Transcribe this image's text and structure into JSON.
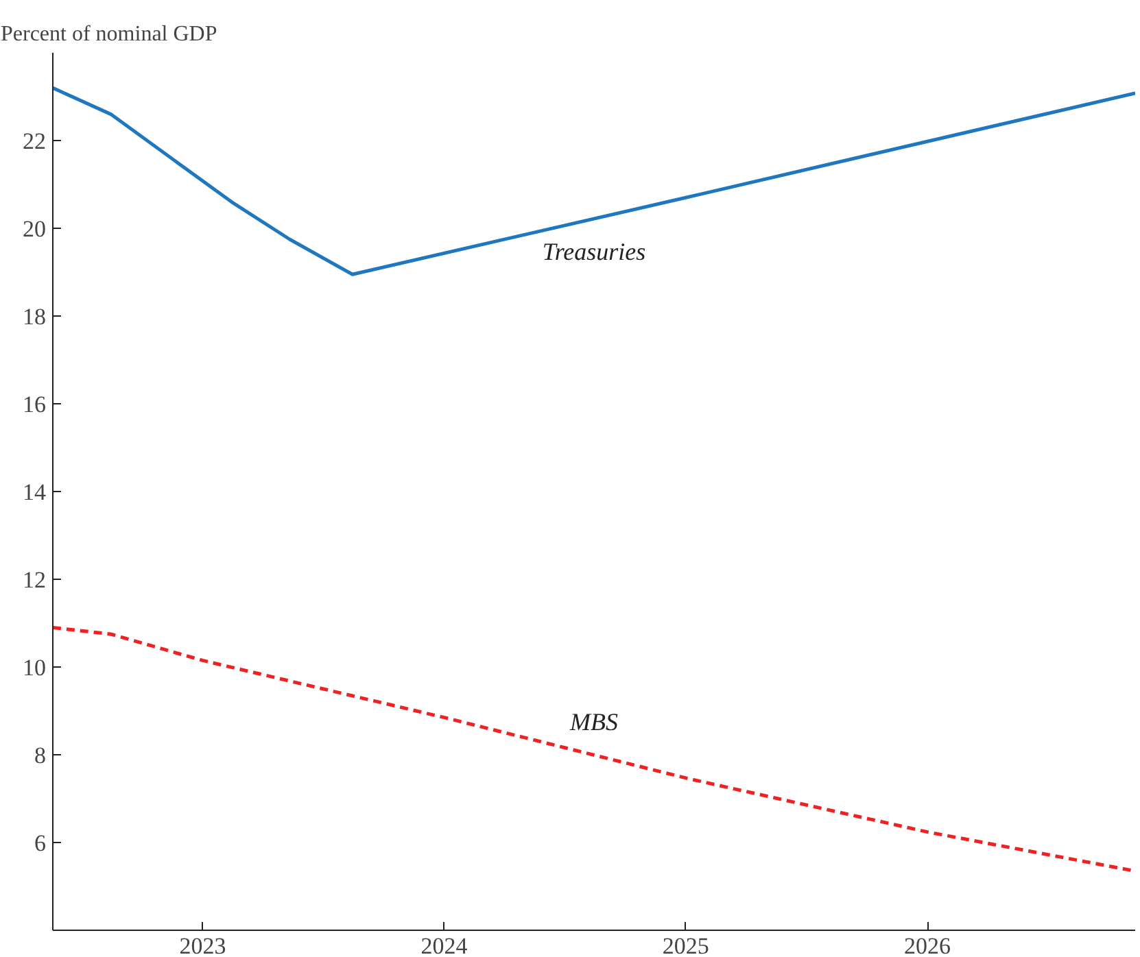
{
  "chart_data": {
    "type": "line",
    "ylabel": "Percent of nominal GDP",
    "xlim": [
      2022.38,
      2026.86
    ],
    "ylim": [
      4,
      24
    ],
    "xticks": [
      2023,
      2024,
      2025,
      2026
    ],
    "yticks": [
      6,
      8,
      10,
      12,
      14,
      16,
      18,
      20,
      22
    ],
    "grid": false,
    "legend": false,
    "series": [
      {
        "name": "Treasuries",
        "color": "#1f77c0",
        "line_style": "solid",
        "x": [
          2022.38,
          2022.62,
          2023.12,
          2023.36,
          2023.62,
          2025,
          2026.86
        ],
        "values": [
          23.2,
          22.6,
          20.6,
          19.75,
          18.95,
          20.7,
          23.08
        ]
      },
      {
        "name": "MBS",
        "color": "#ee2222",
        "line_style": "dashed",
        "x": [
          2022.38,
          2022.62,
          2023,
          2024,
          2025,
          2026,
          2026.86
        ],
        "values": [
          10.9,
          10.75,
          10.15,
          8.85,
          7.47,
          6.24,
          5.35
        ]
      }
    ]
  }
}
